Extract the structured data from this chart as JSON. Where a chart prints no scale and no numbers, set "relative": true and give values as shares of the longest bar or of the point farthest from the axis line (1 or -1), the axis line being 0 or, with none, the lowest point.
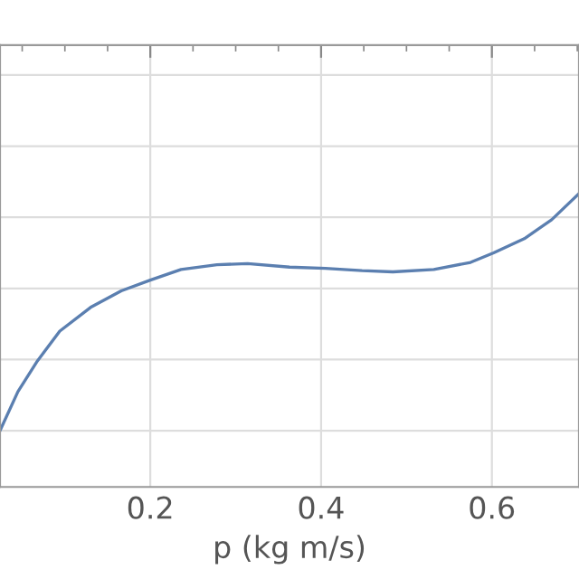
{
  "chart_data": {
    "type": "line",
    "xlabel": "p (kg m/s)",
    "relative": true,
    "grid": true,
    "xlim": [
      0.024,
      0.702
    ],
    "xticks": [
      0.2,
      0.4,
      0.6
    ],
    "series": [
      {
        "color": "#5b7fb0",
        "x": [
          0.024,
          0.045,
          0.067,
          0.094,
          0.13,
          0.166,
          0.2,
          0.236,
          0.278,
          0.314,
          0.363,
          0.405,
          0.448,
          0.484,
          0.532,
          0.575,
          0.602,
          0.638,
          0.67,
          0.702
        ],
        "values": [
          0,
          0.165,
          0.29,
          0.42,
          0.52,
          0.59,
          0.635,
          0.68,
          0.7,
          0.705,
          0.69,
          0.685,
          0.675,
          0.67,
          0.68,
          0.71,
          0.75,
          0.81,
          0.89,
          1.0
        ]
      }
    ]
  }
}
